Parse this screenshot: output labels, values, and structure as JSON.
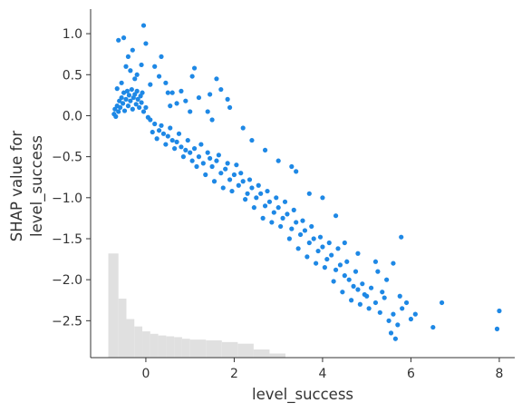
{
  "chart_data": {
    "type": "scatter",
    "xlabel": "level_success",
    "ylabel_lines": [
      "SHAP value for",
      "level_success"
    ],
    "xlim": [
      -1.25,
      8.35
    ],
    "ylim": [
      -2.95,
      1.3
    ],
    "x_ticks": [
      0,
      2,
      4,
      6,
      8
    ],
    "x_tick_labels": [
      "0",
      "2",
      "4",
      "6",
      "8"
    ],
    "y_ticks": [
      1.0,
      0.5,
      0.0,
      -0.5,
      -1.0,
      -1.5,
      -2.0,
      -2.5
    ],
    "y_tick_labels": [
      "1.0",
      "0.5",
      "0.0",
      "−0.5",
      "−1.0",
      "−1.5",
      "−2.0",
      "−2.5"
    ],
    "point_color": "#1e88e5",
    "histogram_color": "#e0e0e0",
    "grid": false,
    "histogram": {
      "bin_edges": [
        -0.85,
        -0.62,
        -0.44,
        -0.26,
        -0.08,
        0.1,
        0.28,
        0.46,
        0.64,
        0.82,
        1.0,
        1.36,
        1.72,
        2.08,
        2.44,
        2.8,
        3.16
      ],
      "heights": [
        -1.68,
        -2.23,
        -2.48,
        -2.57,
        -2.63,
        -2.66,
        -2.68,
        -2.69,
        -2.7,
        -2.72,
        -2.73,
        -2.74,
        -2.76,
        -2.78,
        -2.85,
        -2.9
      ],
      "baseline": -2.95
    },
    "points": [
      [
        -0.72,
        0.02
      ],
      [
        -0.7,
        0.08
      ],
      [
        -0.68,
        -0.01
      ],
      [
        -0.65,
        0.12
      ],
      [
        -0.62,
        0.05
      ],
      [
        -0.6,
        0.18
      ],
      [
        -0.58,
        0.1
      ],
      [
        -0.55,
        0.22
      ],
      [
        -0.52,
        0.15
      ],
      [
        -0.5,
        0.28
      ],
      [
        -0.48,
        0.06
      ],
      [
        -0.45,
        0.2
      ],
      [
        -0.42,
        0.3
      ],
      [
        -0.4,
        0.12
      ],
      [
        -0.38,
        0.25
      ],
      [
        -0.35,
        0.18
      ],
      [
        -0.32,
        0.32
      ],
      [
        -0.3,
        0.08
      ],
      [
        -0.28,
        0.22
      ],
      [
        -0.25,
        0.26
      ],
      [
        -0.22,
        0.14
      ],
      [
        -0.2,
        0.3
      ],
      [
        -0.18,
        0.2
      ],
      [
        -0.15,
        0.1
      ],
      [
        -0.12,
        0.24
      ],
      [
        -0.1,
        0.16
      ],
      [
        -0.08,
        0.28
      ],
      [
        -0.05,
        0.05
      ],
      [
        0.0,
        0.1
      ],
      [
        0.05,
        -0.02
      ],
      [
        -0.62,
        0.92
      ],
      [
        -0.5,
        0.95
      ],
      [
        -0.4,
        0.72
      ],
      [
        -0.45,
        0.6
      ],
      [
        -0.35,
        0.55
      ],
      [
        -0.3,
        0.8
      ],
      [
        -0.25,
        0.45
      ],
      [
        -0.55,
        0.4
      ],
      [
        -0.65,
        0.33
      ],
      [
        -0.2,
        0.5
      ],
      [
        -0.05,
        1.1
      ],
      [
        0.0,
        0.88
      ],
      [
        -0.1,
        0.62
      ],
      [
        0.1,
        0.38
      ],
      [
        0.2,
        0.6
      ],
      [
        0.3,
        0.48
      ],
      [
        0.35,
        0.72
      ],
      [
        0.45,
        0.4
      ],
      [
        0.5,
        0.28
      ],
      [
        0.55,
        0.12
      ],
      [
        0.1,
        -0.05
      ],
      [
        0.2,
        -0.1
      ],
      [
        0.3,
        -0.18
      ],
      [
        0.4,
        -0.22
      ],
      [
        0.5,
        -0.25
      ],
      [
        0.6,
        -0.3
      ],
      [
        0.7,
        -0.32
      ],
      [
        0.8,
        -0.38
      ],
      [
        0.9,
        -0.42
      ],
      [
        1.0,
        -0.45
      ],
      [
        0.15,
        -0.2
      ],
      [
        0.25,
        -0.28
      ],
      [
        0.35,
        -0.12
      ],
      [
        0.45,
        -0.35
      ],
      [
        0.55,
        -0.15
      ],
      [
        0.65,
        -0.4
      ],
      [
        0.75,
        -0.22
      ],
      [
        0.85,
        -0.5
      ],
      [
        0.95,
        -0.3
      ],
      [
        1.05,
        -0.55
      ],
      [
        1.1,
        -0.4
      ],
      [
        1.2,
        -0.5
      ],
      [
        1.3,
        -0.58
      ],
      [
        1.4,
        -0.45
      ],
      [
        1.5,
        -0.62
      ],
      [
        1.6,
        -0.55
      ],
      [
        1.7,
        -0.7
      ],
      [
        1.8,
        -0.65
      ],
      [
        1.9,
        -0.78
      ],
      [
        2.0,
        -0.72
      ],
      [
        1.15,
        -0.62
      ],
      [
        1.25,
        -0.35
      ],
      [
        1.35,
        -0.72
      ],
      [
        1.45,
        -0.52
      ],
      [
        1.55,
        -0.8
      ],
      [
        1.65,
        -0.48
      ],
      [
        1.75,
        -0.88
      ],
      [
        1.85,
        -0.58
      ],
      [
        1.95,
        -0.92
      ],
      [
        2.05,
        -0.6
      ],
      [
        2.1,
        -0.85
      ],
      [
        2.2,
        -0.8
      ],
      [
        2.3,
        -0.95
      ],
      [
        2.4,
        -0.88
      ],
      [
        2.5,
        -1.0
      ],
      [
        2.6,
        -0.95
      ],
      [
        2.7,
        -1.1
      ],
      [
        2.8,
        -1.05
      ],
      [
        2.9,
        -1.18
      ],
      [
        3.0,
        -1.12
      ],
      [
        2.15,
        -0.7
      ],
      [
        2.25,
        -1.02
      ],
      [
        2.35,
        -0.78
      ],
      [
        2.45,
        -1.12
      ],
      [
        2.55,
        -0.85
      ],
      [
        2.65,
        -1.25
      ],
      [
        2.75,
        -0.92
      ],
      [
        2.85,
        -1.3
      ],
      [
        2.95,
        -1.0
      ],
      [
        3.05,
        -1.35
      ],
      [
        3.1,
        -1.25
      ],
      [
        3.2,
        -1.2
      ],
      [
        3.3,
        -1.38
      ],
      [
        3.4,
        -1.3
      ],
      [
        3.5,
        -1.45
      ],
      [
        3.6,
        -1.4
      ],
      [
        3.7,
        -1.55
      ],
      [
        3.8,
        -1.5
      ],
      [
        3.9,
        -1.65
      ],
      [
        4.0,
        -1.6
      ],
      [
        3.15,
        -1.05
      ],
      [
        3.25,
        -1.5
      ],
      [
        3.35,
        -1.15
      ],
      [
        3.45,
        -1.62
      ],
      [
        3.55,
        -1.28
      ],
      [
        3.65,
        -1.72
      ],
      [
        3.75,
        -1.35
      ],
      [
        3.85,
        -1.8
      ],
      [
        3.95,
        -1.48
      ],
      [
        4.05,
        -1.85
      ],
      [
        4.1,
        -1.75
      ],
      [
        4.2,
        -1.7
      ],
      [
        4.3,
        -1.88
      ],
      [
        4.4,
        -1.82
      ],
      [
        4.5,
        -1.95
      ],
      [
        4.6,
        -2.0
      ],
      [
        4.7,
        -2.08
      ],
      [
        4.8,
        -2.12
      ],
      [
        4.9,
        -2.05
      ],
      [
        5.0,
        -2.2
      ],
      [
        4.15,
        -1.55
      ],
      [
        4.25,
        -2.02
      ],
      [
        4.35,
        -1.62
      ],
      [
        4.45,
        -2.15
      ],
      [
        4.55,
        -1.78
      ],
      [
        4.65,
        -2.25
      ],
      [
        4.75,
        -1.9
      ],
      [
        4.85,
        -2.3
      ],
      [
        4.95,
        -2.18
      ],
      [
        5.05,
        -2.35
      ],
      [
        5.1,
        -2.1
      ],
      [
        5.2,
        -2.28
      ],
      [
        5.3,
        -2.4
      ],
      [
        5.4,
        -2.22
      ],
      [
        5.5,
        -2.5
      ],
      [
        5.6,
        -2.42
      ],
      [
        5.7,
        -2.55
      ],
      [
        5.8,
        -2.35
      ],
      [
        5.55,
        -2.65
      ],
      [
        5.65,
        -2.72
      ],
      [
        5.45,
        -2.0
      ],
      [
        5.25,
        -1.9
      ],
      [
        5.35,
        -2.15
      ],
      [
        5.6,
        -1.8
      ],
      [
        5.75,
        -2.2
      ],
      [
        5.78,
        -1.48
      ],
      [
        5.9,
        -2.28
      ],
      [
        6.0,
        -2.48
      ],
      [
        6.1,
        -2.42
      ],
      [
        6.5,
        -2.58
      ],
      [
        6.7,
        -2.28
      ],
      [
        7.95,
        -2.6
      ],
      [
        8.0,
        -2.38
      ],
      [
        5.2,
        -1.78
      ],
      [
        4.5,
        -1.55
      ],
      [
        4.8,
        -1.68
      ],
      [
        4.3,
        -1.22
      ],
      [
        4.0,
        -1.0
      ],
      [
        3.7,
        -0.95
      ],
      [
        3.4,
        -0.68
      ],
      [
        3.3,
        -0.62
      ],
      [
        3.0,
        -0.55
      ],
      [
        2.7,
        -0.42
      ],
      [
        2.4,
        -0.3
      ],
      [
        2.2,
        -0.15
      ],
      [
        1.9,
        0.1
      ],
      [
        1.7,
        0.32
      ],
      [
        1.6,
        0.45
      ],
      [
        1.4,
        0.05
      ],
      [
        1.2,
        0.22
      ],
      [
        1.0,
        0.05
      ],
      [
        0.9,
        0.18
      ],
      [
        0.8,
        0.3
      ],
      [
        1.05,
        0.48
      ],
      [
        1.1,
        0.58
      ],
      [
        0.7,
        0.15
      ],
      [
        0.6,
        0.28
      ],
      [
        1.45,
        0.26
      ],
      [
        1.85,
        0.2
      ],
      [
        1.5,
        -0.05
      ]
    ]
  }
}
